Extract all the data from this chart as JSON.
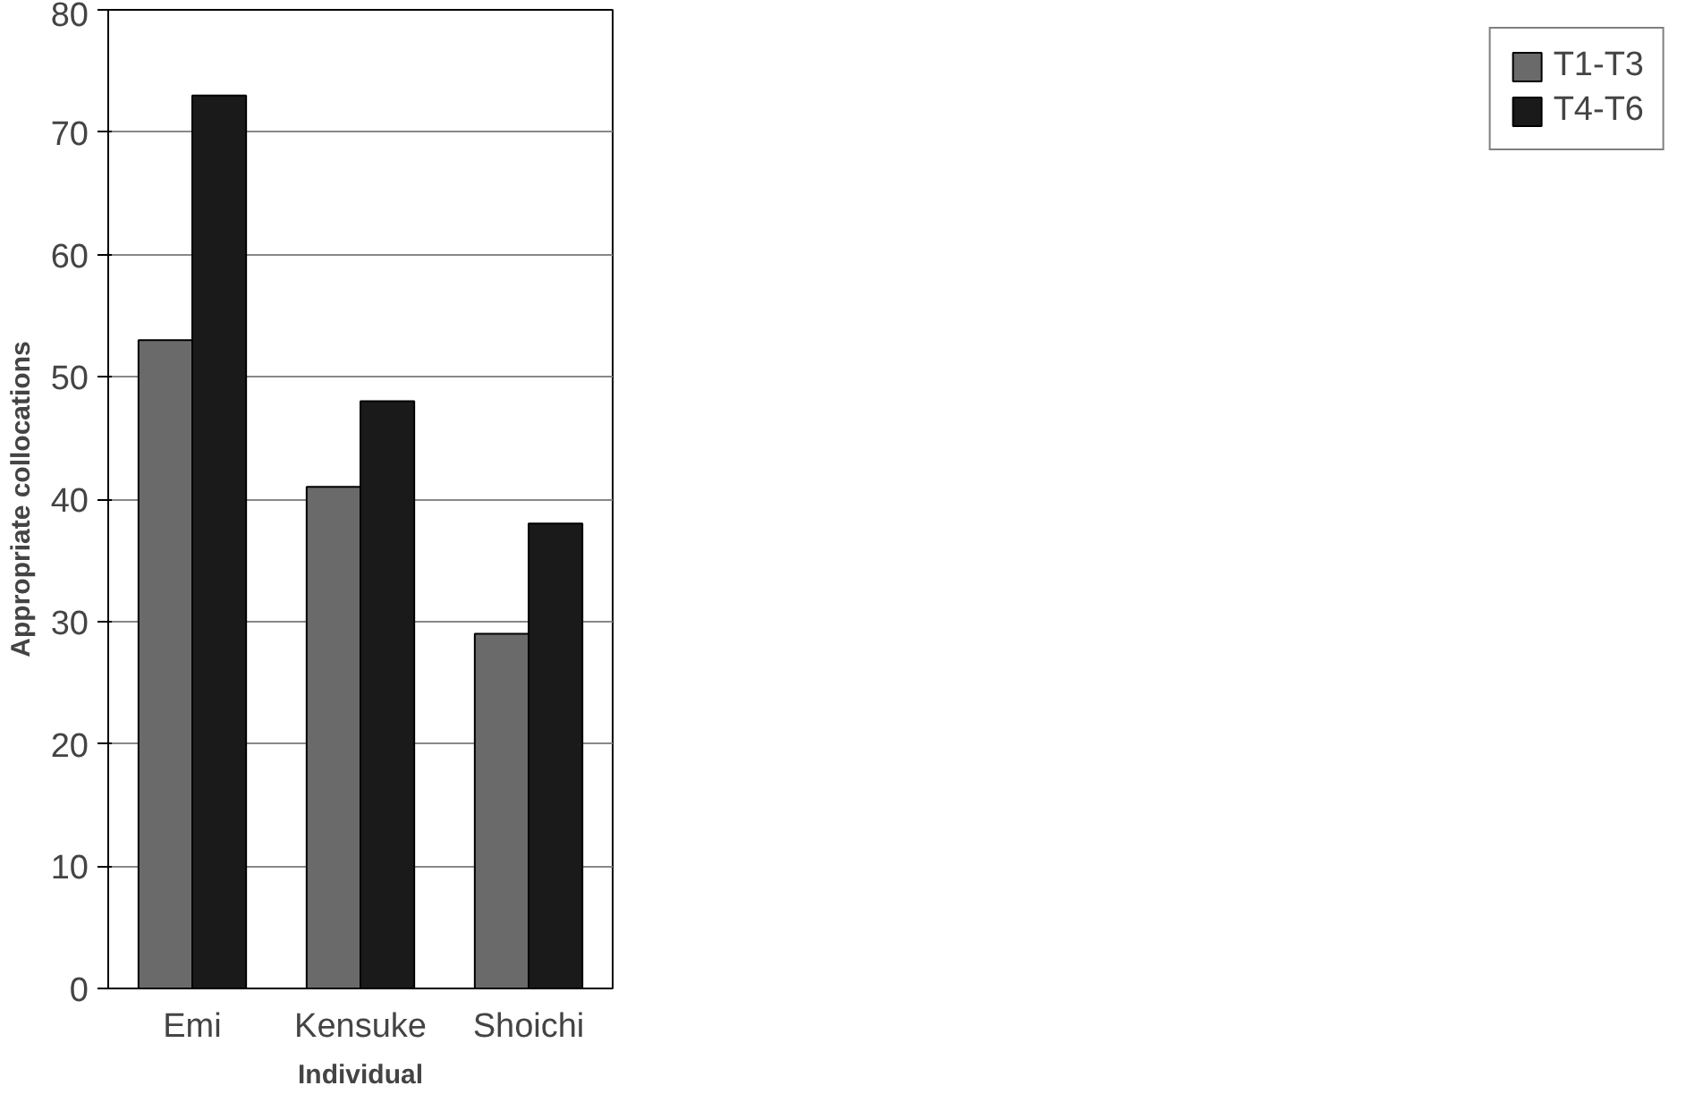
{
  "chart_data": {
    "type": "bar",
    "categories": [
      "Emi",
      "Kensuke",
      "Shoichi"
    ],
    "xlabel": "Individual",
    "ylabel": "Appropriate collocations",
    "series": [
      {
        "name": "T1-T3",
        "color": "#6a6a6a",
        "values": [
          53,
          41,
          29
        ]
      },
      {
        "name": "T4-T6",
        "color": "#1a1a1a",
        "values": [
          73,
          48,
          38
        ]
      }
    ],
    "ylim": [
      0,
      80
    ],
    "yticks": [
      0,
      10,
      20,
      30,
      40,
      50,
      60,
      70,
      80
    ],
    "grid": "y",
    "legend": "right"
  }
}
